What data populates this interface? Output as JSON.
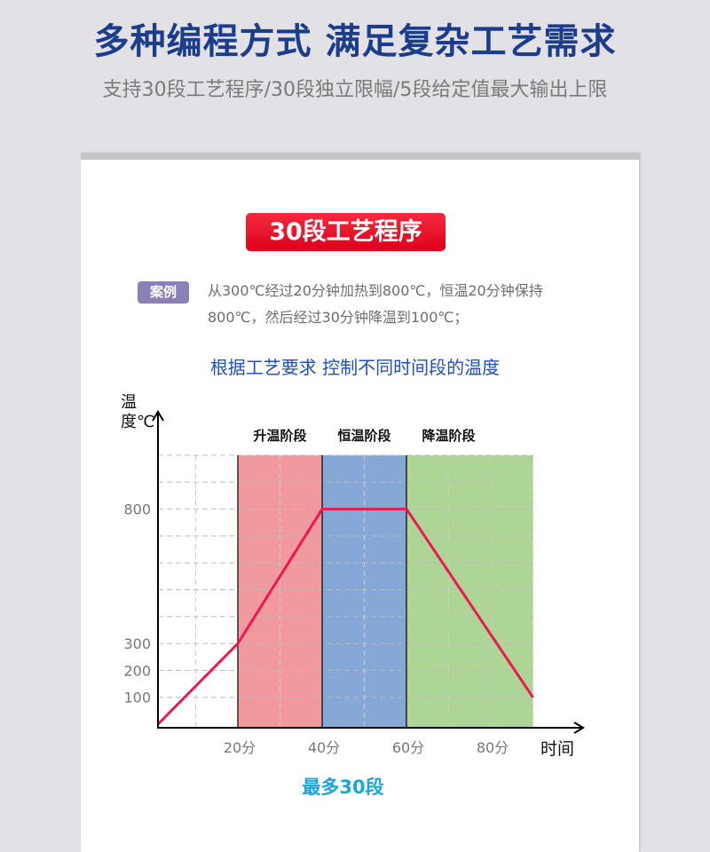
{
  "header": {
    "title": "多种编程方式 满足复杂工艺需求",
    "subtitle": "支持30段工艺程序/30段独立限幅/5段给定值最大输出上限"
  },
  "card": {
    "badge": "30段工艺程序",
    "case_label": "案例",
    "case_text": "从300℃经过20分钟加热到800℃，恒温20分钟保持800℃，然后经过30分钟降温到100℃；",
    "heading": "根据工艺要求 控制不同时间段的温度",
    "note": "最多30段"
  },
  "colors": {
    "title": "#1c3d8c",
    "badge": "#e8081f",
    "heat": "#f09a9e",
    "hold": "#86a8d7",
    "cool": "#add596",
    "line": "#f0164f",
    "heading": "#1e4fc6",
    "note": "#1aa5df"
  },
  "chart_data": {
    "type": "line",
    "ylabel": "温度℃",
    "xlabel": "时间",
    "y_ticks": [
      "100",
      "200",
      "300",
      "800"
    ],
    "y_tick_values": [
      100,
      200,
      300,
      800
    ],
    "x_ticks": [
      "20分",
      "40分",
      "60分",
      "80分"
    ],
    "x_tick_values": [
      20,
      40,
      60,
      80
    ],
    "ylim": [
      0,
      1000
    ],
    "xlim": [
      0,
      90
    ],
    "grid": true,
    "phases": [
      {
        "name": "升温阶段",
        "from": 20,
        "to": 40,
        "color": "#f09a9e"
      },
      {
        "name": "恒温阶段",
        "from": 40,
        "to": 60,
        "color": "#86a8d7"
      },
      {
        "name": "降温阶段",
        "from": 60,
        "to": 90,
        "color": "#add596"
      }
    ],
    "points": [
      [
        0,
        0
      ],
      [
        20,
        300
      ],
      [
        40,
        800
      ],
      [
        60,
        800
      ],
      [
        90,
        100
      ]
    ]
  }
}
